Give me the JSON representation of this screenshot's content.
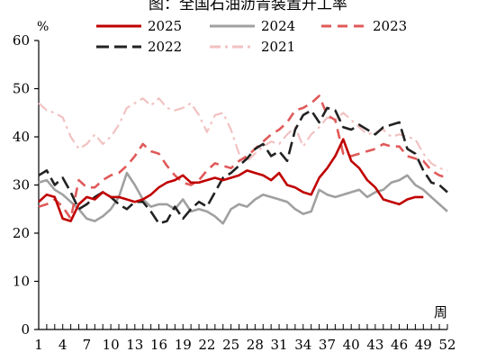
{
  "chart_data": {
    "type": "line",
    "title": "图：全国石油沥青装置开工率",
    "ylabel": "%",
    "xlabel": "周",
    "ylim": [
      0,
      60
    ],
    "yticks": [
      0,
      10,
      20,
      30,
      40,
      50,
      60
    ],
    "xlim": [
      1,
      52
    ],
    "xticks": [
      1,
      4,
      7,
      10,
      13,
      16,
      19,
      22,
      25,
      28,
      31,
      34,
      37,
      40,
      43,
      46,
      49,
      52
    ],
    "grid": false,
    "legend_position": "top",
    "series": [
      {
        "name": "2025",
        "color": "#c00000",
        "dash": "solid",
        "values": [
          26.5,
          28.0,
          27.5,
          23.0,
          22.5,
          26.0,
          27.5,
          27.0,
          28.5,
          27.5,
          27.5,
          27.0,
          26.5,
          27.0,
          28.0,
          29.5,
          30.5,
          31.0,
          32.0,
          30.5,
          30.5,
          31.0,
          31.5,
          31.0,
          31.5,
          32.0,
          33.0,
          32.5,
          32.0,
          31.0,
          32.5,
          30.0,
          29.5,
          28.5,
          28.0,
          31.5,
          33.5,
          36.0,
          39.5,
          35.0,
          33.5,
          31.0,
          29.5,
          27.0,
          26.5,
          26.0,
          27.0,
          27.5,
          27.5,
          null,
          null,
          null
        ]
      },
      {
        "name": "2024",
        "color": "#a0a0a0",
        "dash": "solid",
        "values": [
          30.5,
          31.0,
          29.0,
          28.0,
          26.5,
          25.0,
          23.0,
          22.5,
          23.5,
          25.0,
          27.5,
          32.5,
          30.0,
          27.0,
          25.5,
          26.0,
          26.0,
          25.0,
          27.0,
          24.5,
          25.0,
          24.5,
          23.5,
          22.0,
          25.0,
          26.0,
          25.5,
          27.0,
          28.0,
          27.5,
          27.0,
          26.5,
          25.0,
          24.0,
          24.5,
          29.0,
          28.0,
          27.5,
          28.0,
          28.5,
          29.0,
          27.5,
          28.5,
          29.0,
          30.5,
          31.0,
          32.0,
          30.0,
          29.0,
          27.5,
          26.0,
          24.5
        ]
      },
      {
        "name": "2023",
        "color": "#e05a5a",
        "dash": "dashed",
        "values": [
          25.5,
          26.0,
          27.0,
          25.5,
          23.0,
          31.0,
          29.5,
          29.5,
          31.0,
          32.0,
          32.5,
          34.0,
          36.0,
          38.5,
          37.0,
          36.5,
          34.0,
          32.0,
          30.5,
          30.0,
          31.0,
          33.0,
          34.5,
          34.0,
          33.5,
          35.0,
          36.0,
          37.5,
          39.0,
          40.5,
          41.5,
          43.0,
          45.5,
          46.0,
          47.0,
          48.5,
          44.5,
          43.5,
          36.5,
          36.0,
          36.5,
          37.0,
          37.5,
          38.5,
          38.0,
          38.0,
          36.0,
          35.5,
          35.0,
          33.0,
          32.0,
          31.5
        ]
      },
      {
        "name": "2022",
        "color": "#222222",
        "dash": "longdash",
        "values": [
          32.0,
          33.0,
          30.0,
          31.5,
          28.5,
          25.0,
          26.0,
          27.5,
          28.5,
          27.5,
          26.0,
          25.0,
          26.5,
          26.5,
          24.5,
          22.0,
          22.5,
          25.5,
          23.0,
          25.0,
          26.5,
          25.5,
          28.5,
          31.5,
          32.5,
          34.0,
          35.5,
          37.5,
          38.5,
          36.0,
          37.0,
          35.0,
          41.5,
          44.5,
          45.5,
          43.0,
          46.0,
          45.5,
          42.0,
          41.5,
          42.5,
          41.5,
          40.5,
          42.0,
          42.5,
          43.0,
          37.5,
          36.5,
          33.0,
          30.5,
          30.0,
          28.5
        ]
      },
      {
        "name": "2021",
        "color": "#f2c2c2",
        "dash": "dashdot",
        "values": [
          47.0,
          45.5,
          45.0,
          44.0,
          40.0,
          37.5,
          38.5,
          40.5,
          38.5,
          40.0,
          42.5,
          46.0,
          47.0,
          48.0,
          46.5,
          48.0,
          46.0,
          45.5,
          46.0,
          47.0,
          44.5,
          41.0,
          44.5,
          45.0,
          41.5,
          36.5,
          35.0,
          36.5,
          38.0,
          39.0,
          38.5,
          40.5,
          42.0,
          38.0,
          40.5,
          42.0,
          44.0,
          43.5,
          45.0,
          43.5,
          42.0,
          40.5,
          41.0,
          41.5,
          40.0,
          40.5,
          40.0,
          39.5,
          36.5,
          34.5,
          33.5,
          33.0
        ]
      }
    ]
  }
}
